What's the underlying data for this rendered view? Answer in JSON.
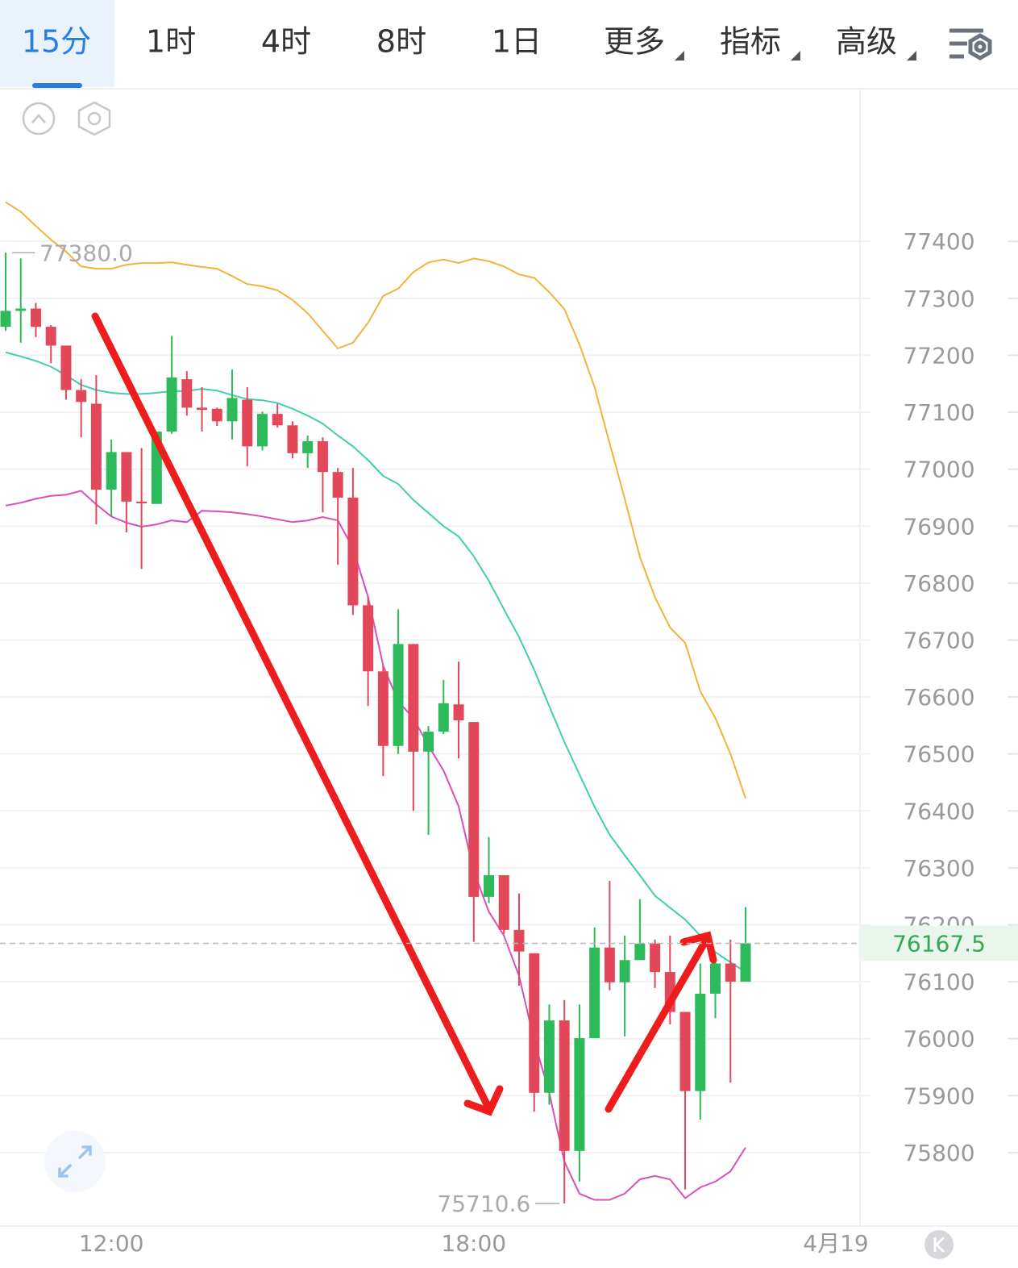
{
  "toolbar": {
    "tabs": [
      "15分",
      "1时",
      "4时",
      "8时",
      "1日",
      "更多",
      "指标",
      "高级"
    ],
    "active": 0
  },
  "chart_data": {
    "type": "candlestick",
    "categories": [
      null,
      null,
      null,
      null,
      null,
      null,
      null,
      "12:00",
      null,
      null,
      null,
      null,
      null,
      null,
      null,
      null,
      null,
      null,
      null,
      null,
      null,
      null,
      null,
      null,
      null,
      null,
      null,
      null,
      null,
      null,
      null,
      "18:00",
      null,
      null,
      null,
      null,
      null,
      null,
      null,
      null,
      null,
      null,
      null,
      null,
      null,
      null,
      null,
      null,
      null,
      null
    ],
    "open": [
      77250,
      77278,
      77282,
      77250,
      77217,
      77139,
      77115,
      76964,
      77030,
      76943,
      76939,
      77066,
      77158,
      77108,
      77106,
      77084,
      77122,
      77040,
      77097,
      77077,
      77028,
      77049,
      76995,
      76950,
      76761,
      76645,
      76514,
      76693,
      76504,
      76539,
      76587,
      76556,
      76249,
      76287,
      76191,
      76150,
      75905,
      76032,
      75803,
      76001,
      76160,
      76099,
      76138,
      76167,
      76117,
      76047,
      75908,
      76079,
      76132,
      76100
    ],
    "high": [
      77380,
      77370,
      77292,
      77253,
      77217,
      77158,
      77165,
      77052,
      77030,
      77037,
      77066,
      77234,
      77172,
      77144,
      77108,
      77175,
      77144,
      77101,
      77115,
      77084,
      77059,
      77056,
      77002,
      77002,
      76776,
      76655,
      76754,
      76693,
      76549,
      76630,
      76662,
      76556,
      76354,
      76287,
      76255,
      76150,
      76060,
      76068,
      76060,
      76195,
      76277,
      76181,
      76245,
      76174,
      76181,
      76047,
      76132,
      76139,
      76174,
      76231
    ],
    "low": [
      77243,
      77222,
      77232,
      77186,
      77122,
      77056,
      76903,
      76917,
      76889,
      76825,
      76939,
      77062,
      77094,
      77066,
      77076,
      77052,
      77005,
      77033,
      77073,
      77019,
      77002,
      76924,
      76832,
      76744,
      76584,
      76461,
      76500,
      76400,
      76358,
      76535,
      76492,
      76170,
      76238,
      76184,
      76093,
      75872,
      75884,
      75710.6,
      75749,
      76001,
      76085,
      76004,
      76138,
      76089,
      76025,
      75735,
      75858,
      76036,
      75923,
      76100
    ],
    "close": [
      77278,
      77282,
      77250,
      77217,
      77139,
      77118,
      76964,
      77030,
      76943,
      76940,
      77066,
      77161,
      77108,
      77104,
      77084,
      77125,
      77040,
      77097,
      77077,
      77028,
      77049,
      76995,
      76950,
      76761,
      76645,
      76514,
      76693,
      76504,
      76539,
      76589,
      76559,
      76249,
      76287,
      76191,
      76153,
      75905,
      76032,
      75803,
      76001,
      76160,
      76099,
      76138,
      76167,
      76117,
      76047,
      75908,
      76079,
      76132,
      76100,
      76167.5
    ],
    "up_color": "#2dba5a",
    "down_color": "#e2485a",
    "lines": [
      {
        "color": "#f0b43c",
        "values": [
          77469,
          77452,
          77427,
          77403,
          77382,
          77356,
          77352,
          77352,
          77359,
          77362,
          77362,
          77363,
          77359,
          77355,
          77352,
          77339,
          77325,
          77321,
          77314,
          77297,
          77274,
          77243,
          77212,
          77222,
          77257,
          77304,
          77317,
          77346,
          77363,
          77368,
          77362,
          77370,
          77365,
          77356,
          77342,
          77336,
          77311,
          77281,
          77219,
          77144,
          77045,
          76948,
          76846,
          76775,
          76722,
          76695,
          76610,
          76563,
          76500,
          76422
        ]
      },
      {
        "color": "#3fcfae",
        "values": [
          77205,
          77198,
          77190,
          77180,
          77165,
          77148,
          77139,
          77134,
          77132,
          77132,
          77134,
          77137,
          77137,
          77141,
          77138,
          77130,
          77123,
          77121,
          77116,
          77106,
          77094,
          77080,
          77059,
          77040,
          77016,
          76988,
          76974,
          76946,
          76923,
          76900,
          76882,
          76847,
          76804,
          76754,
          76705,
          76648,
          76584,
          76521,
          76464,
          76407,
          76358,
          76322,
          76287,
          76251,
          76230,
          76209,
          76181,
          76152,
          76134,
          76117
        ]
      },
      {
        "color": "#d94fb8",
        "values": [
          76936,
          76941,
          76948,
          76953,
          76955,
          76962,
          76938,
          76917,
          76906,
          76899,
          76903,
          76910,
          76907,
          76927,
          76926,
          76924,
          76921,
          76917,
          76912,
          76907,
          76910,
          76916,
          76910,
          76861,
          76776,
          76655,
          76592,
          76563,
          76514,
          76471,
          76408,
          76294,
          76223,
          76181,
          76110,
          75997,
          75905,
          75784,
          75728,
          75717,
          75717,
          75728,
          75753,
          75759,
          75753,
          75720,
          75739,
          75749,
          75767,
          75809
        ]
      }
    ],
    "ylim": [
      75671,
      77668
    ],
    "yticks": [
      75800,
      75900,
      76000,
      76100,
      76200,
      76300,
      76400,
      76500,
      76600,
      76700,
      76800,
      76900,
      77000,
      77100,
      77200,
      77300,
      77400
    ],
    "grid": true,
    "last_price": 76167.5,
    "max_marker": {
      "value": 77380,
      "label": "77380.0"
    },
    "min_marker": {
      "value": 75710.6,
      "label": "75710.6"
    },
    "next_day_label": "4月19"
  }
}
